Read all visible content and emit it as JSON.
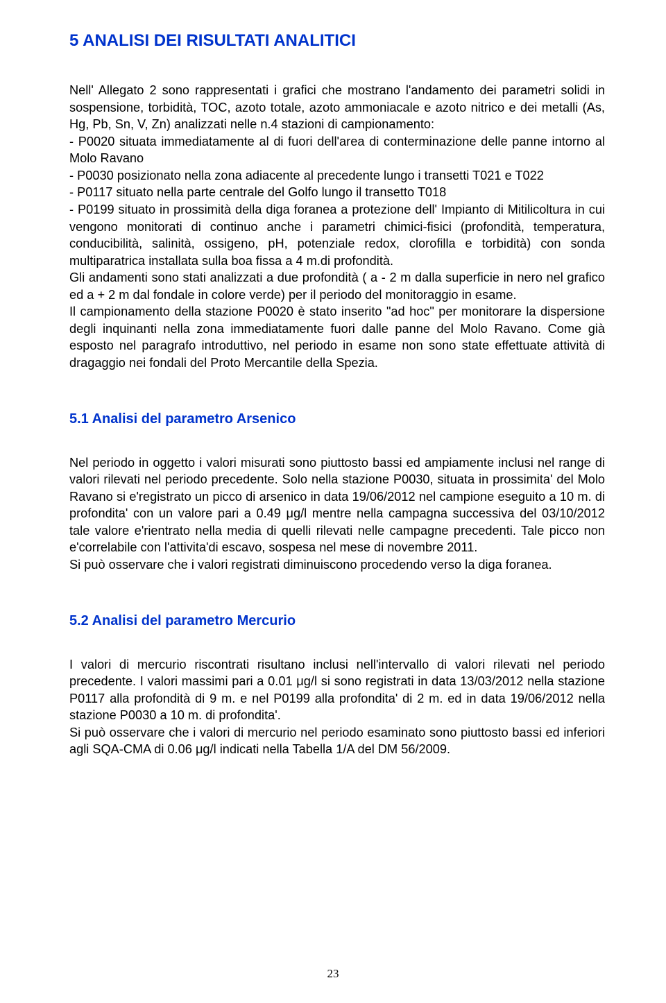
{
  "colors": {
    "heading": "#0033cc",
    "body_text": "#000000",
    "background": "#ffffff"
  },
  "typography": {
    "font_family": "Comic Sans MS",
    "h1_fontsize_pt": 18,
    "h2_fontsize_pt": 15,
    "body_fontsize_pt": 13.5,
    "page_number_font": "Times New Roman"
  },
  "page_number": "23",
  "headings": {
    "h1": "5 ANALISI DEI RISULTATI ANALITICI",
    "h2_1": "5.1 Analisi del parametro Arsenico",
    "h2_2": "5.2 Analisi del parametro Mercurio"
  },
  "paragraphs": {
    "p1": "Nell' Allegato 2 sono rappresentati i grafici che mostrano l'andamento dei parametri solidi in sospensione, torbidità, TOC, azoto totale, azoto ammoniacale e azoto nitrico e dei metalli (As, Hg, Pb, Sn, V, Zn) analizzati nelle n.4 stazioni di campionamento:",
    "li1": "- P0020 situata immediatamente al di fuori dell'area di conterminazione delle panne intorno al Molo Ravano",
    "li2": "- P0030 posizionato nella zona adiacente al precedente lungo i transetti T021 e T022",
    "li3": "- P0117 situato nella parte centrale del Golfo lungo il transetto T018",
    "li4": "- P0199 situato in prossimità della diga foranea a protezione dell' Impianto di Mitilicoltura in cui vengono monitorati di continuo anche i parametri chimici-fisici (profondità, temperatura, conducibilità, salinità, ossigeno, pH, potenziale redox, clorofilla e torbidità) con sonda multiparatrica installata sulla boa fissa a 4 m.di profondità.",
    "p2": "Gli andamenti sono stati analizzati a due profondità ( a - 2 m dalla superficie in nero nel grafico ed a + 2 m dal fondale in colore verde)  per il periodo del monitoraggio in esame.",
    "p3": "Il campionamento della stazione P0020 è stato inserito \"ad hoc\" per monitorare la dispersione degli inquinanti nella zona immediatamente fuori dalle panne del Molo Ravano. Come già esposto nel paragrafo introduttivo, nel periodo in esame non sono state effettuate attività di dragaggio nei fondali del Proto Mercantile della Spezia.",
    "p4": "Nel periodo in oggetto i valori misurati sono piuttosto bassi ed ampiamente inclusi nel range di valori rilevati nel periodo precedente. Solo nella stazione P0030, situata in prossimita' del Molo Ravano si e'registrato un picco di arsenico in data 19/06/2012 nel campione eseguito a 10 m. di profondita' con un valore pari a 0.49 μg/l mentre nella campagna successiva del 03/10/2012 tale valore e'rientrato nella media di quelli rilevati nelle campagne precedenti. Tale picco non e'correlabile con l'attivita'di escavo, sospesa nel mese di novembre 2011.",
    "p5": "Si può osservare che i valori registrati diminuiscono procedendo verso la diga foranea.",
    "p6": "I valori di mercurio riscontrati risultano inclusi nell'intervallo di valori rilevati nel periodo precedente. I valori massimi pari a 0.01 μg/l si sono registrati in data 13/03/2012 nella stazione P0117 alla profondità di 9 m. e nel P0199 alla profondita' di 2 m. ed in data 19/06/2012 nella stazione P0030 a 10 m. di profondita'.",
    "p7": "Si può osservare che i valori di mercurio nel periodo esaminato sono piuttosto bassi ed inferiori agli SQA-CMA di 0.06 μg/l indicati nella Tabella 1/A del DM 56/2009."
  }
}
